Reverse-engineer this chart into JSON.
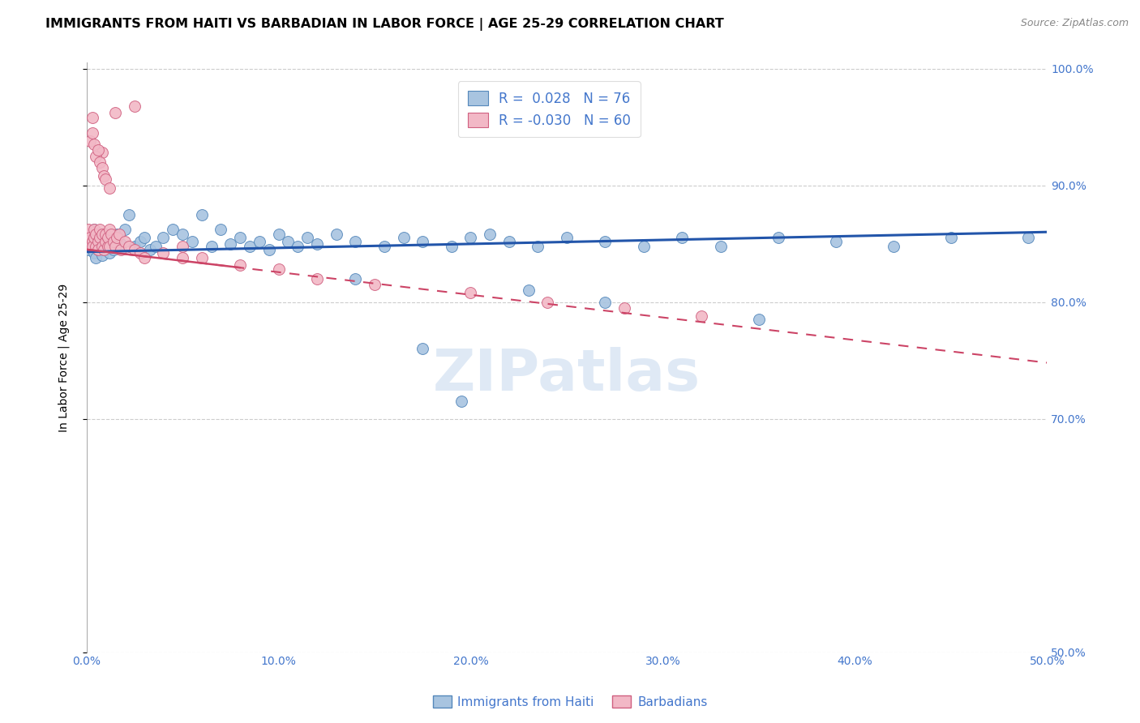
{
  "title": "IMMIGRANTS FROM HAITI VS BARBADIAN IN LABOR FORCE | AGE 25-29 CORRELATION CHART",
  "source": "Source: ZipAtlas.com",
  "ylabel": "In Labor Force | Age 25-29",
  "xlim": [
    0.0,
    0.5
  ],
  "ylim": [
    0.5,
    1.005
  ],
  "xticks": [
    0.0,
    0.1,
    0.2,
    0.3,
    0.4,
    0.5
  ],
  "xticklabels": [
    "0.0%",
    "10.0%",
    "20.0%",
    "30.0%",
    "40.0%",
    "50.0%"
  ],
  "yticks": [
    0.5,
    0.7,
    0.8,
    0.9,
    1.0
  ],
  "yticklabels": [
    "50.0%",
    "70.0%",
    "80.0%",
    "90.0%",
    "100.0%"
  ],
  "haiti_color": "#a8c4e0",
  "haiti_edge_color": "#5588bb",
  "barbados_color": "#f2b8c6",
  "barbados_edge_color": "#d06080",
  "haiti_R": 0.028,
  "haiti_N": 76,
  "barbados_R": -0.03,
  "barbados_N": 60,
  "trend_haiti_color": "#2255aa",
  "trend_barbados_color": "#cc4466",
  "watermark": "ZIPatlas",
  "haiti_x": [
    0.001,
    0.002,
    0.002,
    0.003,
    0.003,
    0.004,
    0.004,
    0.005,
    0.005,
    0.006,
    0.006,
    0.007,
    0.007,
    0.008,
    0.008,
    0.009,
    0.01,
    0.01,
    0.011,
    0.012,
    0.013,
    0.014,
    0.015,
    0.016,
    0.017,
    0.018,
    0.02,
    0.022,
    0.025,
    0.028,
    0.03,
    0.033,
    0.036,
    0.04,
    0.045,
    0.05,
    0.055,
    0.06,
    0.065,
    0.07,
    0.075,
    0.08,
    0.085,
    0.09,
    0.095,
    0.1,
    0.105,
    0.11,
    0.115,
    0.12,
    0.13,
    0.14,
    0.155,
    0.165,
    0.175,
    0.19,
    0.2,
    0.21,
    0.22,
    0.235,
    0.25,
    0.27,
    0.29,
    0.31,
    0.33,
    0.36,
    0.39,
    0.42,
    0.45,
    0.27,
    0.35,
    0.14,
    0.23,
    0.175,
    0.49,
    0.195
  ],
  "haiti_y": [
    0.845,
    0.848,
    0.855,
    0.85,
    0.858,
    0.842,
    0.862,
    0.838,
    0.855,
    0.845,
    0.852,
    0.848,
    0.855,
    0.84,
    0.858,
    0.845,
    0.85,
    0.855,
    0.848,
    0.842,
    0.852,
    0.845,
    0.855,
    0.858,
    0.848,
    0.85,
    0.862,
    0.875,
    0.848,
    0.852,
    0.855,
    0.845,
    0.848,
    0.855,
    0.862,
    0.858,
    0.852,
    0.875,
    0.848,
    0.862,
    0.85,
    0.855,
    0.848,
    0.852,
    0.845,
    0.858,
    0.852,
    0.848,
    0.855,
    0.85,
    0.858,
    0.852,
    0.848,
    0.855,
    0.852,
    0.848,
    0.855,
    0.858,
    0.852,
    0.848,
    0.855,
    0.852,
    0.848,
    0.855,
    0.848,
    0.855,
    0.852,
    0.848,
    0.855,
    0.8,
    0.785,
    0.82,
    0.81,
    0.76,
    0.855,
    0.715
  ],
  "barbados_x": [
    0.001,
    0.001,
    0.002,
    0.002,
    0.003,
    0.003,
    0.004,
    0.004,
    0.005,
    0.005,
    0.006,
    0.006,
    0.007,
    0.007,
    0.008,
    0.008,
    0.009,
    0.01,
    0.01,
    0.011,
    0.011,
    0.012,
    0.012,
    0.013,
    0.014,
    0.015,
    0.016,
    0.017,
    0.018,
    0.02,
    0.022,
    0.025,
    0.028,
    0.03,
    0.04,
    0.05,
    0.06,
    0.08,
    0.1,
    0.12,
    0.15,
    0.2,
    0.24,
    0.28,
    0.32,
    0.003,
    0.008,
    0.015,
    0.025,
    0.05,
    0.002,
    0.003,
    0.004,
    0.005,
    0.006,
    0.007,
    0.008,
    0.009,
    0.01,
    0.012
  ],
  "barbados_y": [
    0.858,
    0.862,
    0.85,
    0.855,
    0.852,
    0.848,
    0.855,
    0.862,
    0.848,
    0.858,
    0.852,
    0.845,
    0.855,
    0.862,
    0.848,
    0.858,
    0.845,
    0.852,
    0.858,
    0.848,
    0.855,
    0.862,
    0.848,
    0.858,
    0.852,
    0.848,
    0.855,
    0.858,
    0.845,
    0.852,
    0.848,
    0.845,
    0.842,
    0.838,
    0.842,
    0.848,
    0.838,
    0.832,
    0.828,
    0.82,
    0.815,
    0.808,
    0.8,
    0.795,
    0.788,
    0.958,
    0.928,
    0.962,
    0.968,
    0.838,
    0.938,
    0.945,
    0.935,
    0.925,
    0.93,
    0.92,
    0.915,
    0.908,
    0.905,
    0.898
  ],
  "title_fontsize": 11.5,
  "axis_label_fontsize": 10,
  "tick_fontsize": 10,
  "marker_size": 10,
  "background_color": "#ffffff",
  "grid_color": "#cccccc",
  "axis_color": "#4477cc",
  "haiti_trend_y0": 0.843,
  "haiti_trend_y1": 0.86,
  "barbados_trend_y0": 0.845,
  "barbados_trend_y1": 0.748
}
